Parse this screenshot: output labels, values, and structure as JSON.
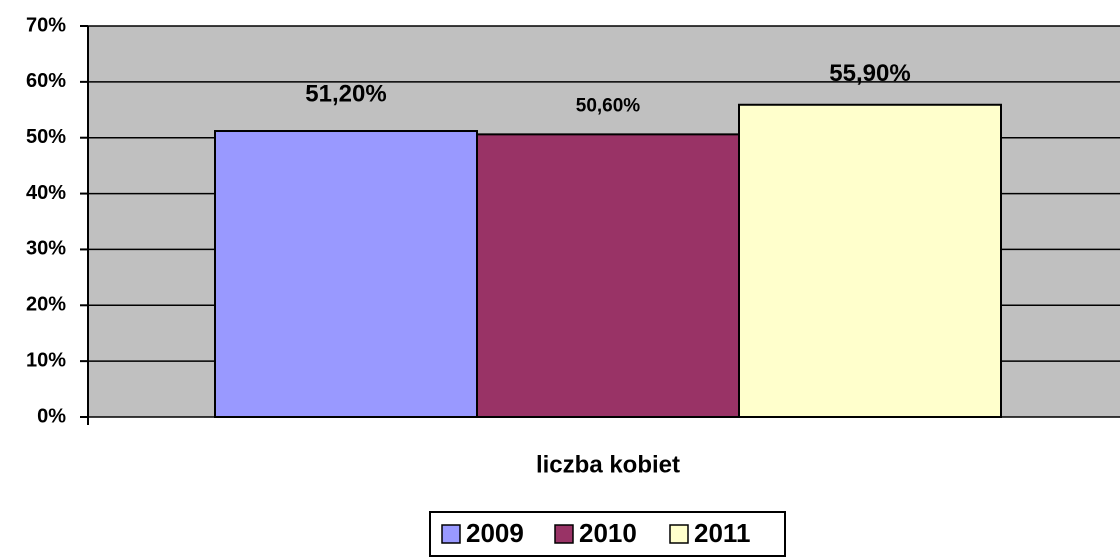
{
  "chart_data": {
    "type": "bar",
    "x_label": "liczba kobiet",
    "categories": [
      "liczba kobiet"
    ],
    "series": [
      {
        "name": "2009",
        "color": "#9999ff",
        "values": [
          51.2
        ],
        "value_labels": [
          "51,20%"
        ]
      },
      {
        "name": "2010",
        "color": "#993366",
        "values": [
          50.6
        ],
        "value_labels": [
          "50,60%"
        ]
      },
      {
        "name": "2011",
        "color": "#ffffcc",
        "values": [
          55.9
        ],
        "value_labels": [
          "55,90%"
        ]
      }
    ],
    "ylim": [
      0,
      70
    ],
    "yticks": [
      {
        "value": 0,
        "label": "0%"
      },
      {
        "value": 10,
        "label": "10%"
      },
      {
        "value": 20,
        "label": "20%"
      },
      {
        "value": 30,
        "label": "30%"
      },
      {
        "value": 40,
        "label": "40%"
      },
      {
        "value": 50,
        "label": "50%"
      },
      {
        "value": 60,
        "label": "60%"
      },
      {
        "value": 70,
        "label": "70%"
      }
    ],
    "grid": true,
    "plot_background": "#c0c0c0",
    "legend": "bottom"
  }
}
